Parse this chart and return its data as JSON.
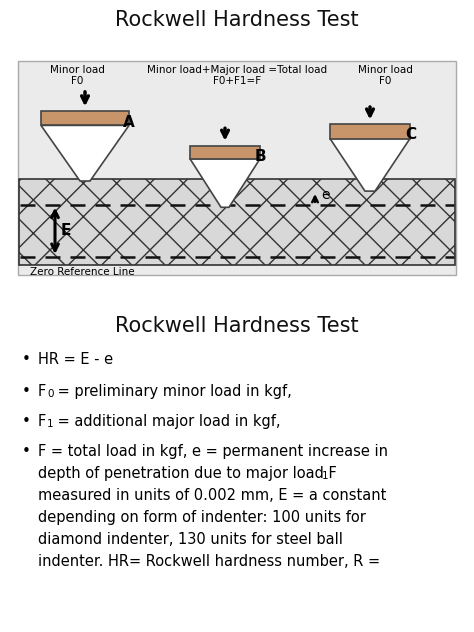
{
  "title": "Rockwell Hardness Test",
  "title2": "Rockwell Hardness Test",
  "bg_color": "#ebebeb",
  "indenter_fill": "#c8956a",
  "indenter_edge": "#444444",
  "material_hatch_color": "#888888",
  "arrow_color": "#111111",
  "dashed_color": "#111111",
  "label_A": "A",
  "label_B": "B",
  "label_C": "C",
  "label_E": "E",
  "label_e": "e",
  "minor_load_left": "Minor load\nF0",
  "minor_load_right": "Minor load\nF0",
  "total_load_text": "Minor load+Major load =Total load\nF0+F1=F",
  "zero_ref_text": "Zero Reference Line",
  "font_color": "#111111"
}
